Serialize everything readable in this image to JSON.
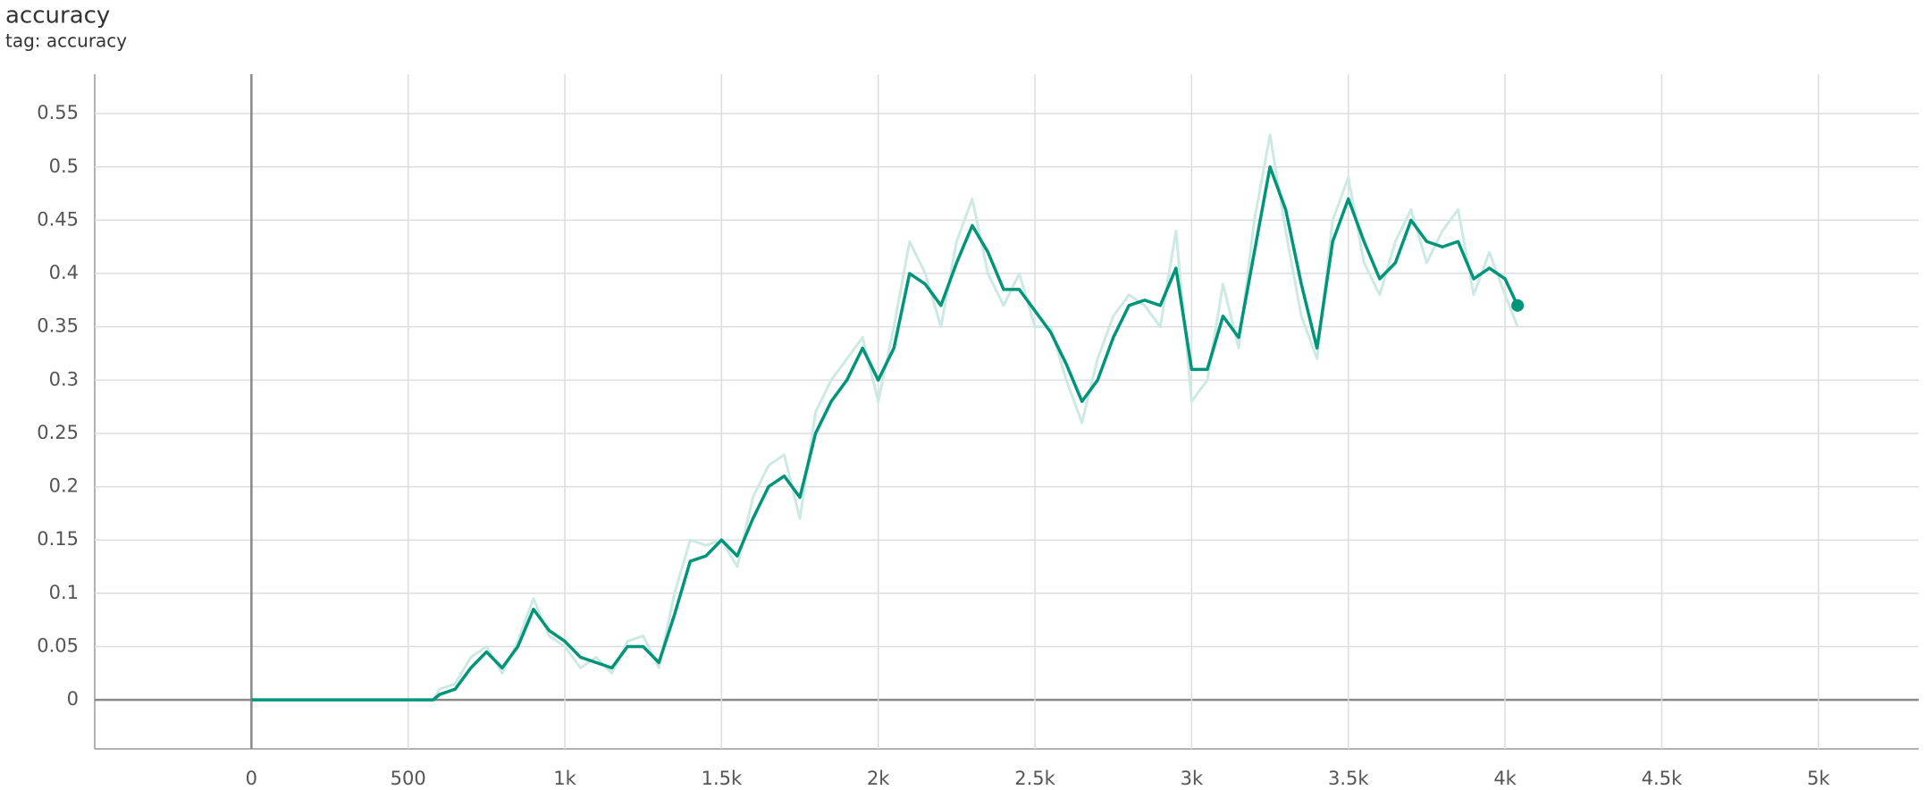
{
  "chart_data": {
    "type": "line",
    "title": "accuracy",
    "subtitle": "tag: accuracy",
    "x": [
      0,
      100,
      200,
      300,
      400,
      500,
      580,
      600,
      650,
      700,
      750,
      800,
      850,
      900,
      950,
      1000,
      1050,
      1100,
      1150,
      1200,
      1250,
      1300,
      1350,
      1400,
      1450,
      1500,
      1550,
      1600,
      1650,
      1700,
      1750,
      1800,
      1850,
      1900,
      1950,
      2000,
      2050,
      2100,
      2150,
      2200,
      2250,
      2300,
      2350,
      2400,
      2450,
      2500,
      2550,
      2600,
      2650,
      2700,
      2750,
      2800,
      2850,
      2900,
      2950,
      3000,
      3050,
      3100,
      3150,
      3200,
      3250,
      3300,
      3350,
      3400,
      3450,
      3500,
      3550,
      3600,
      3650,
      3700,
      3750,
      3800,
      3850,
      3900,
      3950,
      4000,
      4040
    ],
    "series": [
      {
        "color": "#cde9e3",
        "values": [
          0,
          0,
          0,
          0,
          0,
          0,
          0,
          0.01,
          0.015,
          0.04,
          0.05,
          0.025,
          0.055,
          0.095,
          0.06,
          0.05,
          0.03,
          0.04,
          0.025,
          0.055,
          0.06,
          0.03,
          0.1,
          0.15,
          0.145,
          0.15,
          0.125,
          0.19,
          0.22,
          0.23,
          0.17,
          0.27,
          0.3,
          0.32,
          0.34,
          0.28,
          0.35,
          0.43,
          0.4,
          0.35,
          0.43,
          0.47,
          0.4,
          0.37,
          0.4,
          0.35,
          0.35,
          0.3,
          0.26,
          0.32,
          0.36,
          0.38,
          0.37,
          0.35,
          0.44,
          0.28,
          0.3,
          0.39,
          0.33,
          0.45,
          0.53,
          0.44,
          0.36,
          0.32,
          0.45,
          0.49,
          0.41,
          0.38,
          0.43,
          0.46,
          0.41,
          0.44,
          0.46,
          0.38,
          0.42,
          0.38,
          0.35
        ]
      },
      {
        "color": "#009578",
        "values": [
          0,
          0,
          0,
          0,
          0,
          0,
          0,
          0.005,
          0.01,
          0.03,
          0.045,
          0.03,
          0.05,
          0.085,
          0.065,
          0.055,
          0.04,
          0.035,
          0.03,
          0.05,
          0.05,
          0.035,
          0.08,
          0.13,
          0.135,
          0.15,
          0.135,
          0.17,
          0.2,
          0.21,
          0.19,
          0.25,
          0.28,
          0.3,
          0.33,
          0.3,
          0.33,
          0.4,
          0.39,
          0.37,
          0.41,
          0.445,
          0.42,
          0.385,
          0.385,
          0.365,
          0.345,
          0.315,
          0.28,
          0.3,
          0.34,
          0.37,
          0.375,
          0.37,
          0.405,
          0.31,
          0.31,
          0.36,
          0.34,
          0.42,
          0.5,
          0.46,
          0.39,
          0.33,
          0.43,
          0.47,
          0.43,
          0.395,
          0.41,
          0.45,
          0.43,
          0.425,
          0.43,
          0.395,
          0.405,
          0.395,
          0.37
        ]
      }
    ],
    "xlim": [
      -500,
      5320
    ],
    "xticks": [
      0,
      500,
      {
        "value": 1000,
        "label": "1k"
      },
      {
        "value": 1500,
        "label": "1.5k"
      },
      {
        "value": 2000,
        "label": "2k"
      },
      {
        "value": 2500,
        "label": "2.5k"
      },
      {
        "value": 3000,
        "label": "3k"
      },
      {
        "value": 3500,
        "label": "3.5k"
      },
      {
        "value": 4000,
        "label": "4k"
      },
      {
        "value": 4500,
        "label": "4.5k"
      },
      {
        "value": 5000,
        "label": "5k"
      }
    ],
    "ylim": [
      -0.046,
      0.587
    ],
    "yticks": [
      0,
      0.05,
      0.1,
      0.15,
      0.2,
      0.25,
      0.3,
      0.35,
      0.4,
      0.45,
      0.5,
      0.55
    ],
    "grid": true
  }
}
